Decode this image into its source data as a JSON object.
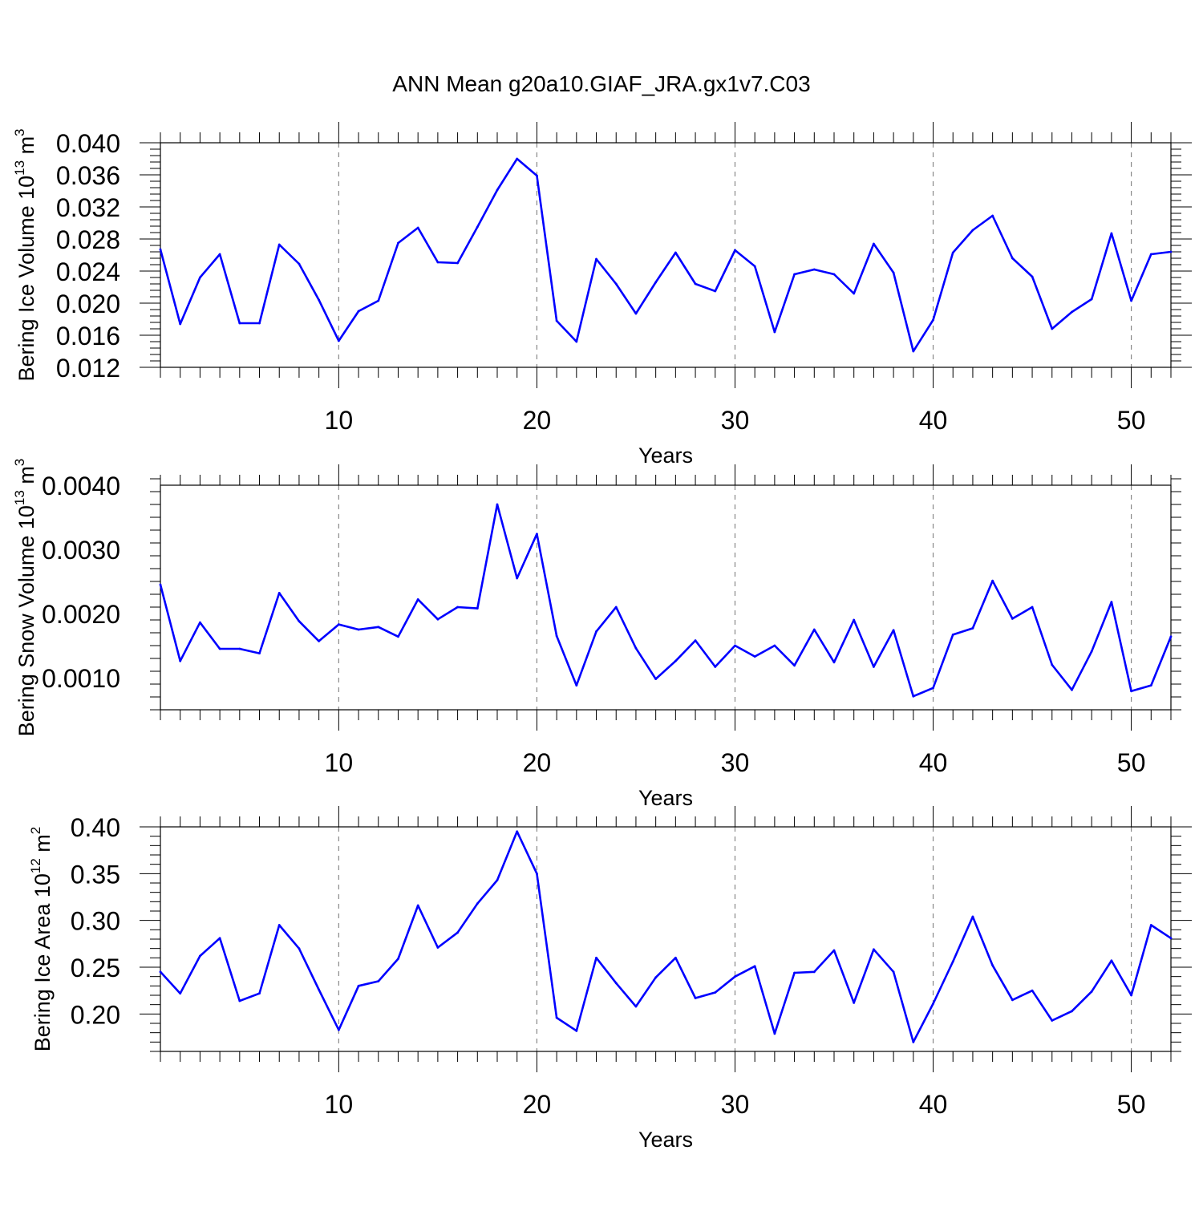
{
  "figure": {
    "title": "ANN Mean g20a10.GIAF_JRA.gx1v7.C03",
    "colors": {
      "line": "#0000ff",
      "axis": "#000000",
      "grid": "#888888"
    }
  },
  "chart_data": [
    {
      "type": "line",
      "title": "ANN Mean g20a10.GIAF_JRA.gx1v7.C03",
      "xlabel": "Years",
      "ylabel": {
        "main": "Bering Ice Volume 10",
        "sup": "13",
        "unit": " m",
        "unit_sup": "3"
      },
      "xlim": [
        1,
        52
      ],
      "ylim": [
        0.012,
        0.04
      ],
      "xticks": [
        10,
        20,
        30,
        40,
        50
      ],
      "yticks": [
        0.012,
        0.016,
        0.02,
        0.024,
        0.028,
        0.032,
        0.036,
        0.04
      ],
      "ytick_labels": [
        "0.012",
        "0.016",
        "0.020",
        "0.024",
        "0.028",
        "0.032",
        "0.036",
        "0.040"
      ],
      "x": [
        1,
        2,
        3,
        4,
        5,
        6,
        7,
        8,
        9,
        10,
        11,
        12,
        13,
        14,
        15,
        16,
        17,
        18,
        19,
        20,
        21,
        22,
        23,
        24,
        25,
        26,
        27,
        28,
        29,
        30,
        31,
        32,
        33,
        34,
        35,
        36,
        37,
        38,
        39,
        40,
        41,
        42,
        43,
        44,
        45,
        46,
        47,
        48,
        49,
        50,
        51,
        52
      ],
      "values": [
        0.0267,
        0.0174,
        0.0232,
        0.0261,
        0.0175,
        0.0175,
        0.0273,
        0.0249,
        0.0204,
        0.0153,
        0.019,
        0.0203,
        0.0275,
        0.0294,
        0.0251,
        0.025,
        0.0295,
        0.0341,
        0.038,
        0.0359,
        0.0178,
        0.0152,
        0.0255,
        0.0224,
        0.0187,
        0.0226,
        0.0263,
        0.0224,
        0.0215,
        0.0266,
        0.0246,
        0.0164,
        0.0236,
        0.0242,
        0.0236,
        0.0212,
        0.0274,
        0.0238,
        0.014,
        0.0179,
        0.0263,
        0.0291,
        0.0309,
        0.0256,
        0.0233,
        0.0168,
        0.0189,
        0.0205,
        0.0287,
        0.0203,
        0.0261,
        0.0264
      ]
    },
    {
      "type": "line",
      "xlabel": "Years",
      "ylabel": {
        "main": "Bering Snow Volume 10",
        "sup": "13",
        "unit": " m",
        "unit_sup": "3"
      },
      "xlim": [
        1,
        52
      ],
      "ylim": [
        0.0005,
        0.004
      ],
      "xticks": [
        10,
        20,
        30,
        40,
        50
      ],
      "yticks": [
        0.001,
        0.002,
        0.003,
        0.004
      ],
      "ytick_labels": [
        "0.0010",
        "0.0020",
        "0.0030",
        "0.0040"
      ],
      "x": [
        1,
        2,
        3,
        4,
        5,
        6,
        7,
        8,
        9,
        10,
        11,
        12,
        13,
        14,
        15,
        16,
        17,
        18,
        19,
        20,
        21,
        22,
        23,
        24,
        25,
        26,
        27,
        28,
        29,
        30,
        31,
        32,
        33,
        34,
        35,
        36,
        37,
        38,
        39,
        40,
        41,
        42,
        43,
        44,
        45,
        46,
        47,
        48,
        49,
        50,
        51,
        52
      ],
      "values": [
        0.00245,
        0.00126,
        0.00186,
        0.00145,
        0.00145,
        0.00138,
        0.00232,
        0.00188,
        0.00157,
        0.00183,
        0.00175,
        0.00179,
        0.00164,
        0.00222,
        0.00191,
        0.0021,
        0.00208,
        0.0037,
        0.00255,
        0.00324,
        0.00165,
        0.00088,
        0.00172,
        0.0021,
        0.00146,
        0.00098,
        0.00126,
        0.00158,
        0.00117,
        0.0015,
        0.00133,
        0.0015,
        0.00119,
        0.00175,
        0.00124,
        0.0019,
        0.00117,
        0.00174,
        0.00071,
        0.00084,
        0.00167,
        0.00177,
        0.00251,
        0.00192,
        0.0021,
        0.0012,
        0.00081,
        0.00141,
        0.00218,
        0.00079,
        0.00088,
        0.00164
      ]
    },
    {
      "type": "line",
      "xlabel": "Years",
      "ylabel": {
        "main": "Bering Ice Area 10",
        "sup": "12",
        "unit": " m",
        "unit_sup": "2"
      },
      "xlim": [
        1,
        52
      ],
      "ylim": [
        0.16,
        0.4
      ],
      "xticks": [
        10,
        20,
        30,
        40,
        50
      ],
      "yticks": [
        0.2,
        0.25,
        0.3,
        0.35,
        0.4
      ],
      "ytick_labels": [
        "0.20",
        "0.25",
        "0.30",
        "0.35",
        "0.40"
      ],
      "x": [
        1,
        2,
        3,
        4,
        5,
        6,
        7,
        8,
        9,
        10,
        11,
        12,
        13,
        14,
        15,
        16,
        17,
        18,
        19,
        20,
        21,
        22,
        23,
        24,
        25,
        26,
        27,
        28,
        29,
        30,
        31,
        32,
        33,
        34,
        35,
        36,
        37,
        38,
        39,
        40,
        41,
        42,
        43,
        44,
        45,
        46,
        47,
        48,
        49,
        50,
        51,
        52
      ],
      "values": [
        0.245,
        0.222,
        0.262,
        0.281,
        0.214,
        0.222,
        0.295,
        0.27,
        0.226,
        0.183,
        0.23,
        0.235,
        0.259,
        0.316,
        0.271,
        0.287,
        0.318,
        0.343,
        0.395,
        0.35,
        0.196,
        0.182,
        0.26,
        0.233,
        0.208,
        0.239,
        0.26,
        0.217,
        0.223,
        0.24,
        0.251,
        0.179,
        0.244,
        0.245,
        0.268,
        0.212,
        0.269,
        0.245,
        0.17,
        0.211,
        0.256,
        0.304,
        0.252,
        0.215,
        0.225,
        0.193,
        0.203,
        0.224,
        0.257,
        0.22,
        0.295,
        0.281
      ]
    }
  ]
}
